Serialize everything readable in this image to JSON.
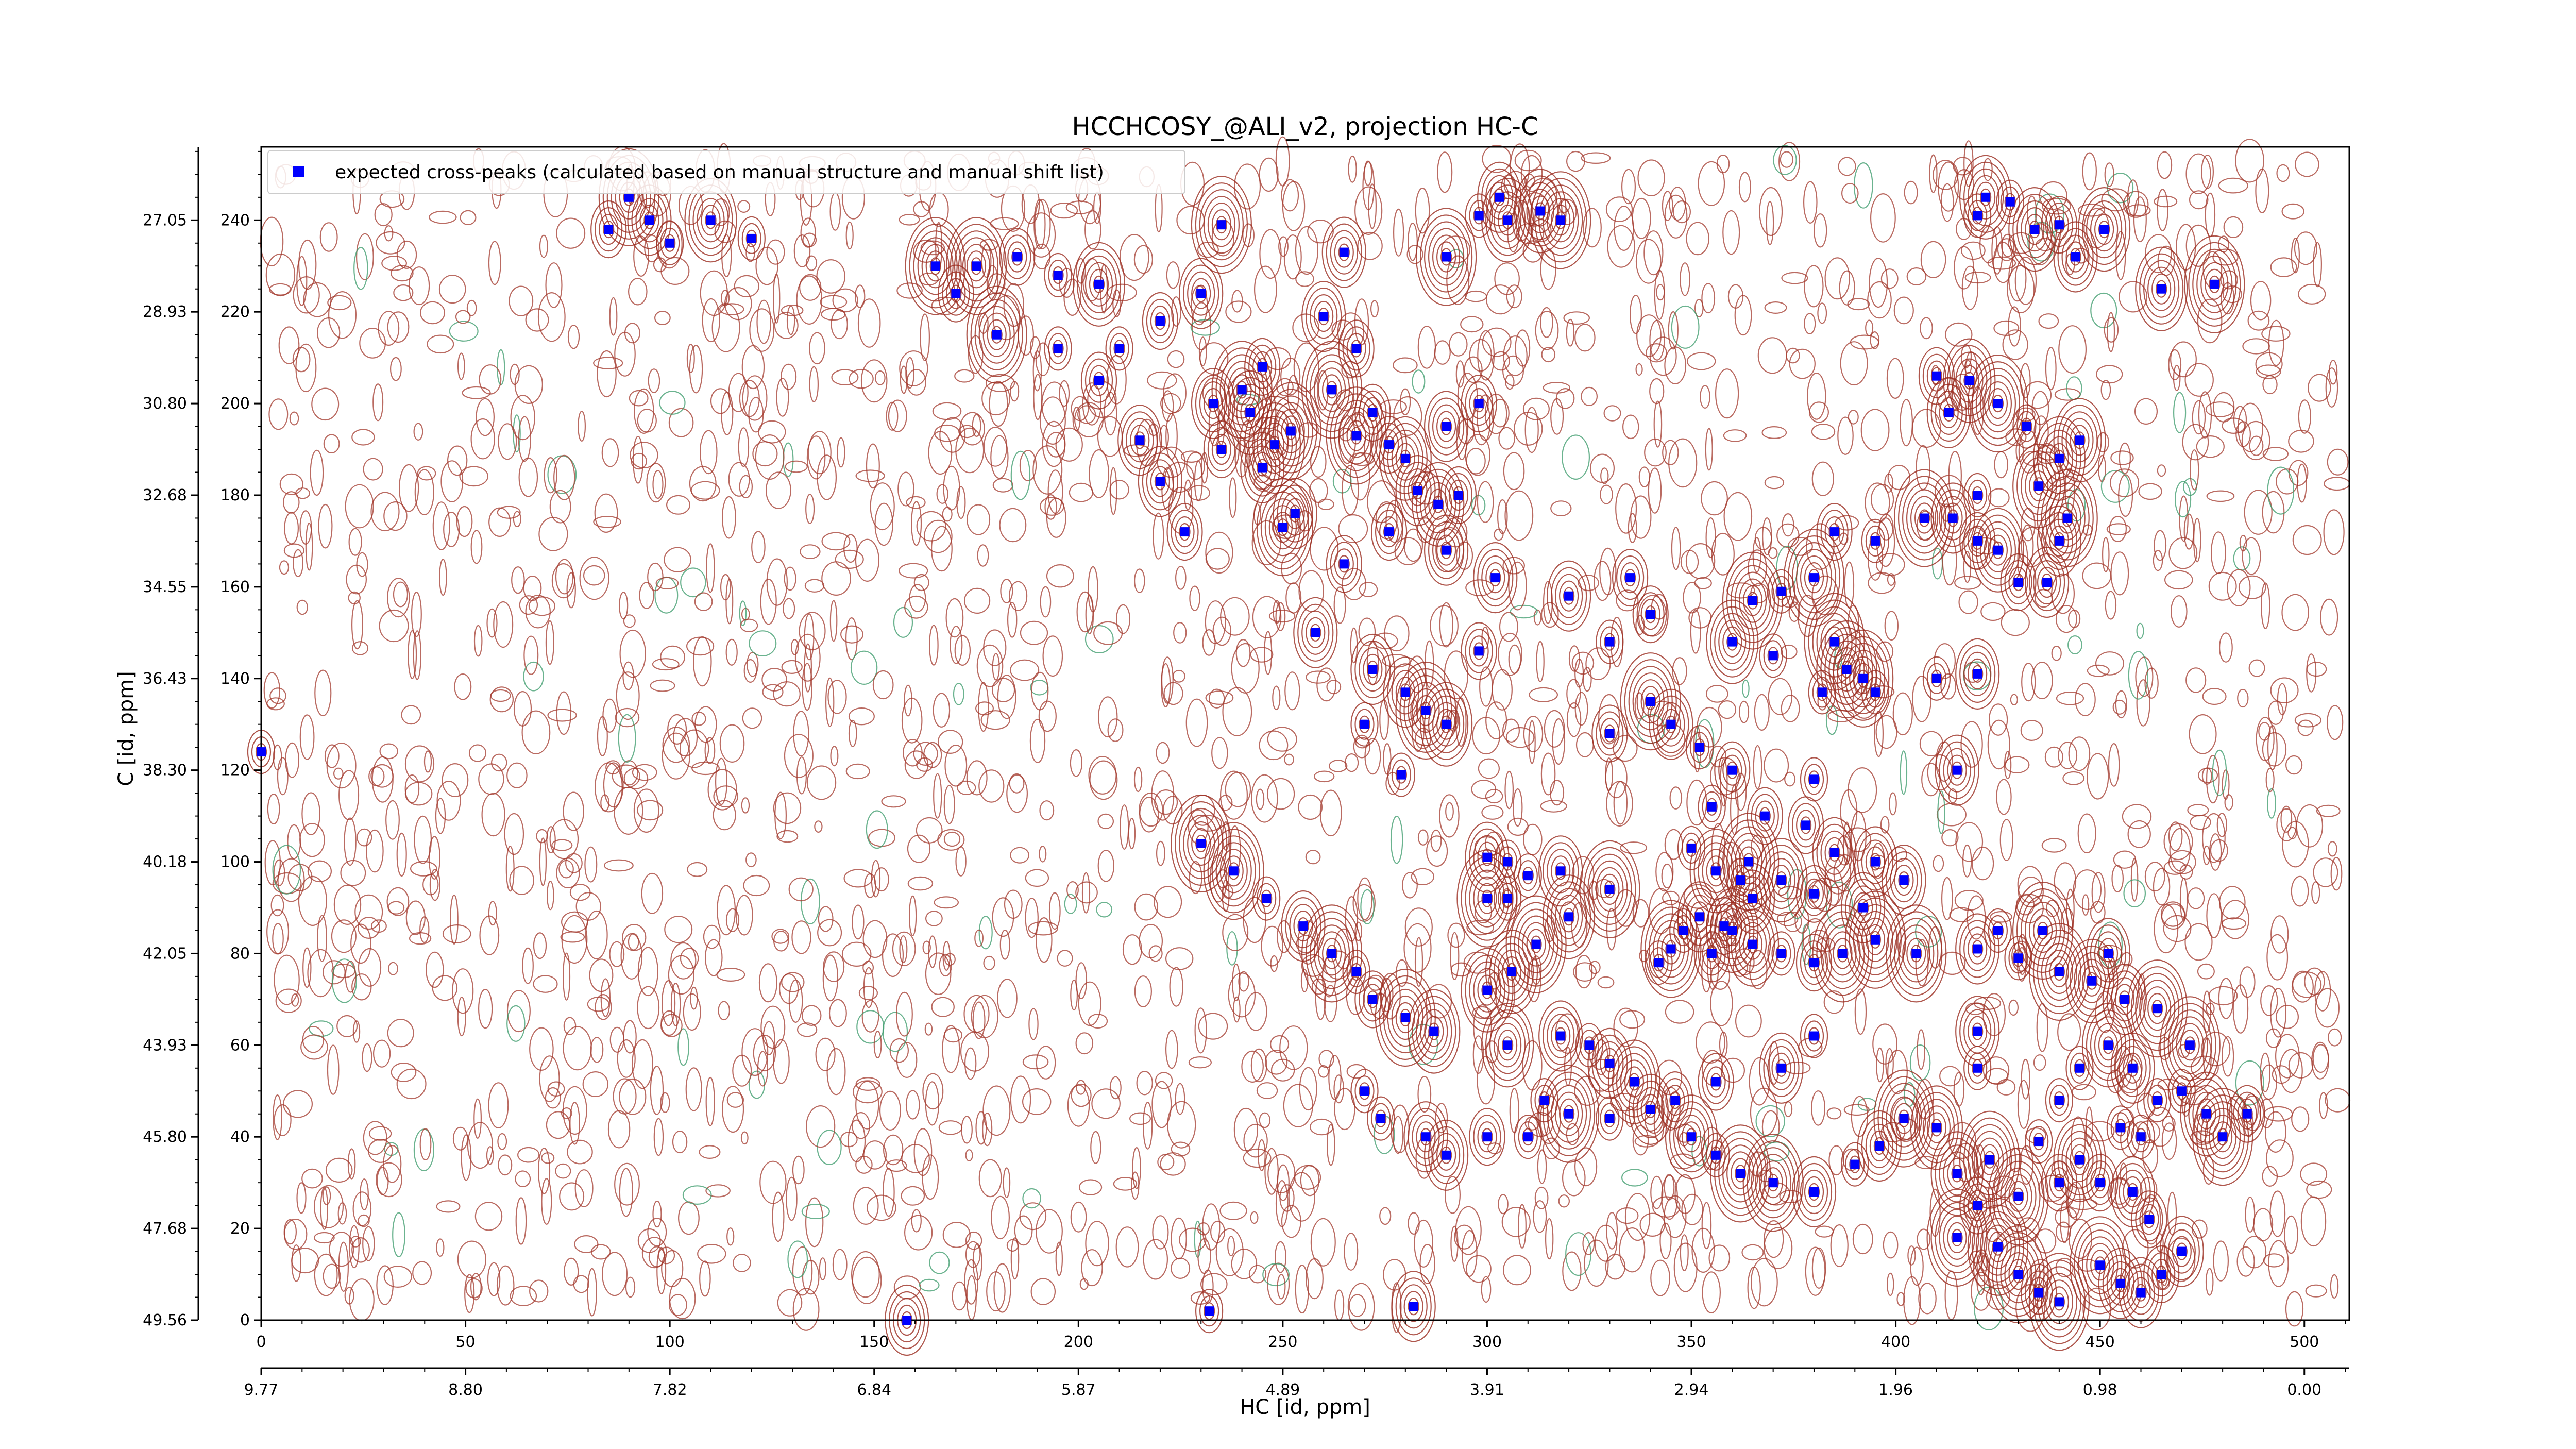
{
  "chart_data": {
    "type": "scatter",
    "title": "HCCHCOSY_@ALI_v2, projection HC-C",
    "xlabel": "HC [id, ppm]",
    "ylabel": "C [id, ppm]",
    "xlim": [
      0,
      511
    ],
    "ylim": [
      0,
      256
    ],
    "x_ticks": [
      0,
      50,
      100,
      150,
      200,
      250,
      300,
      350,
      400,
      450,
      500
    ],
    "y_ticks": [
      0,
      20,
      40,
      60,
      80,
      100,
      120,
      140,
      160,
      180,
      200,
      220,
      240
    ],
    "x_ppm_ticks": [
      "9.77",
      "8.80",
      "7.82",
      "6.84",
      "5.87",
      "4.89",
      "3.91",
      "2.94",
      "1.96",
      "0.98",
      "0.00"
    ],
    "y_ppm_ticks": [
      "49.56",
      "47.68",
      "45.80",
      "43.93",
      "42.05",
      "40.18",
      "38.30",
      "36.43",
      "34.55",
      "32.68",
      "30.80",
      "28.93",
      "27.05"
    ],
    "grid": false,
    "legend_position": "top-left",
    "series": [
      {
        "name": "expected cross-peaks (calculated based on manual structure and manual shift list)",
        "marker": "square",
        "color": "#0000ff",
        "points": [
          [
            235,
            239
          ],
          [
            240,
            203
          ],
          [
            245,
            208
          ],
          [
            242,
            198
          ],
          [
            248,
            191
          ],
          [
            252,
            194
          ],
          [
            260,
            219
          ],
          [
            265,
            233
          ],
          [
            268,
            212
          ],
          [
            262,
            203
          ],
          [
            268,
            193
          ],
          [
            272,
            198
          ],
          [
            276,
            191
          ],
          [
            280,
            188
          ],
          [
            290,
            195
          ],
          [
            283,
            181
          ],
          [
            288,
            178
          ],
          [
            293,
            180
          ],
          [
            276,
            172
          ],
          [
            290,
            168
          ],
          [
            250,
            173
          ],
          [
            253,
            176
          ],
          [
            226,
            172
          ],
          [
            205,
            205
          ],
          [
            215,
            192
          ],
          [
            220,
            183
          ],
          [
            233,
            200
          ],
          [
            235,
            190
          ],
          [
            245,
            186
          ],
          [
            265,
            165
          ],
          [
            258,
            150
          ],
          [
            272,
            142
          ],
          [
            280,
            137
          ],
          [
            285,
            133
          ],
          [
            270,
            130
          ],
          [
            279,
            119
          ],
          [
            290,
            130
          ],
          [
            298,
            146
          ],
          [
            302,
            162
          ],
          [
            298,
            200
          ],
          [
            290,
            232
          ],
          [
            298,
            241
          ],
          [
            303,
            245
          ],
          [
            305,
            240
          ],
          [
            313,
            242
          ],
          [
            318,
            240
          ],
          [
            420,
            241
          ],
          [
            422,
            245
          ],
          [
            428,
            244
          ],
          [
            434,
            238
          ],
          [
            440,
            239
          ],
          [
            444,
            232
          ],
          [
            451,
            238
          ],
          [
            465,
            225
          ],
          [
            478,
            226
          ],
          [
            410,
            206
          ],
          [
            413,
            198
          ],
          [
            418,
            205
          ],
          [
            425,
            200
          ],
          [
            432,
            195
          ],
          [
            445,
            192
          ],
          [
            440,
            188
          ],
          [
            435,
            182
          ],
          [
            420,
            180
          ],
          [
            414,
            175
          ],
          [
            420,
            170
          ],
          [
            425,
            168
          ],
          [
            430,
            161
          ],
          [
            437,
            161
          ],
          [
            440,
            170
          ],
          [
            442,
            175
          ],
          [
            407,
            175
          ],
          [
            395,
            170
          ],
          [
            385,
            172
          ],
          [
            380,
            162
          ],
          [
            372,
            159
          ],
          [
            365,
            157
          ],
          [
            340,
            154
          ],
          [
            300,
            101
          ],
          [
            305,
            100
          ],
          [
            310,
            97
          ],
          [
            318,
            98
          ],
          [
            300,
            92
          ],
          [
            305,
            92
          ],
          [
            320,
            158
          ],
          [
            335,
            162
          ],
          [
            330,
            148
          ],
          [
            360,
            148
          ],
          [
            370,
            145
          ],
          [
            385,
            148
          ],
          [
            388,
            142
          ],
          [
            392,
            140
          ],
          [
            395,
            137
          ],
          [
            382,
            137
          ],
          [
            410,
            140
          ],
          [
            420,
            141
          ],
          [
            415,
            120
          ],
          [
            380,
            118
          ],
          [
            360,
            120
          ],
          [
            352,
            125
          ],
          [
            350,
            103
          ],
          [
            356,
            98
          ],
          [
            362,
            96
          ],
          [
            365,
            92
          ],
          [
            360,
            85
          ],
          [
            342,
            78
          ],
          [
            345,
            81
          ],
          [
            348,
            85
          ],
          [
            352,
            88
          ],
          [
            355,
            80
          ],
          [
            358,
            86
          ],
          [
            365,
            82
          ],
          [
            372,
            80
          ],
          [
            380,
            78
          ],
          [
            387,
            80
          ],
          [
            395,
            83
          ],
          [
            405,
            80
          ],
          [
            420,
            81
          ],
          [
            425,
            85
          ],
          [
            430,
            79
          ],
          [
            436,
            85
          ],
          [
            440,
            76
          ],
          [
            448,
            74
          ],
          [
            452,
            80
          ],
          [
            456,
            70
          ],
          [
            464,
            68
          ],
          [
            472,
            60
          ],
          [
            420,
            63
          ],
          [
            420,
            55
          ],
          [
            380,
            62
          ],
          [
            372,
            55
          ],
          [
            356,
            52
          ],
          [
            346,
            48
          ],
          [
            330,
            44
          ],
          [
            320,
            45
          ],
          [
            314,
            48
          ],
          [
            310,
            40
          ],
          [
            300,
            40
          ],
          [
            290,
            36
          ],
          [
            285,
            40
          ],
          [
            274,
            44
          ],
          [
            270,
            50
          ],
          [
            287,
            63
          ],
          [
            305,
            60
          ],
          [
            318,
            62
          ],
          [
            325,
            60
          ],
          [
            330,
            56
          ],
          [
            336,
            52
          ],
          [
            340,
            46
          ],
          [
            350,
            40
          ],
          [
            356,
            36
          ],
          [
            362,
            32
          ],
          [
            370,
            30
          ],
          [
            380,
            28
          ],
          [
            390,
            34
          ],
          [
            396,
            38
          ],
          [
            402,
            44
          ],
          [
            410,
            42
          ],
          [
            415,
            32
          ],
          [
            423,
            35
          ],
          [
            435,
            39
          ],
          [
            440,
            48
          ],
          [
            445,
            55
          ],
          [
            452,
            60
          ],
          [
            458,
            55
          ],
          [
            464,
            48
          ],
          [
            470,
            50
          ],
          [
            476,
            45
          ],
          [
            480,
            40
          ],
          [
            486,
            45
          ],
          [
            460,
            40
          ],
          [
            455,
            42
          ],
          [
            445,
            35
          ],
          [
            440,
            30
          ],
          [
            430,
            27
          ],
          [
            420,
            25
          ],
          [
            415,
            18
          ],
          [
            425,
            16
          ],
          [
            430,
            10
          ],
          [
            435,
            6
          ],
          [
            440,
            4
          ],
          [
            450,
            12
          ],
          [
            455,
            8
          ],
          [
            460,
            6
          ],
          [
            465,
            10
          ],
          [
            470,
            15
          ],
          [
            462,
            22
          ],
          [
            458,
            28
          ],
          [
            450,
            30
          ],
          [
            282,
            3
          ],
          [
            232,
            2
          ],
          [
            158,
            0
          ],
          [
            0,
            124
          ],
          [
            90,
            245
          ],
          [
            85,
            238
          ],
          [
            95,
            240
          ],
          [
            100,
            235
          ],
          [
            110,
            240
          ],
          [
            120,
            236
          ],
          [
            165,
            230
          ],
          [
            170,
            224
          ],
          [
            175,
            230
          ],
          [
            185,
            232
          ],
          [
            195,
            228
          ],
          [
            205,
            226
          ],
          [
            180,
            215
          ],
          [
            195,
            212
          ],
          [
            210,
            212
          ],
          [
            220,
            218
          ],
          [
            230,
            224
          ],
          [
            330,
            128
          ],
          [
            340,
            135
          ],
          [
            345,
            130
          ],
          [
            355,
            112
          ],
          [
            368,
            110
          ],
          [
            378,
            108
          ],
          [
            385,
            102
          ],
          [
            395,
            100
          ],
          [
            402,
            96
          ],
          [
            392,
            90
          ],
          [
            380,
            93
          ],
          [
            372,
            96
          ],
          [
            364,
            100
          ],
          [
            330,
            94
          ],
          [
            320,
            88
          ],
          [
            312,
            82
          ],
          [
            306,
            76
          ],
          [
            300,
            72
          ],
          [
            280,
            66
          ],
          [
            272,
            70
          ],
          [
            268,
            76
          ],
          [
            262,
            80
          ],
          [
            255,
            86
          ],
          [
            246,
            92
          ],
          [
            238,
            98
          ],
          [
            230,
            104
          ]
        ]
      }
    ]
  }
}
